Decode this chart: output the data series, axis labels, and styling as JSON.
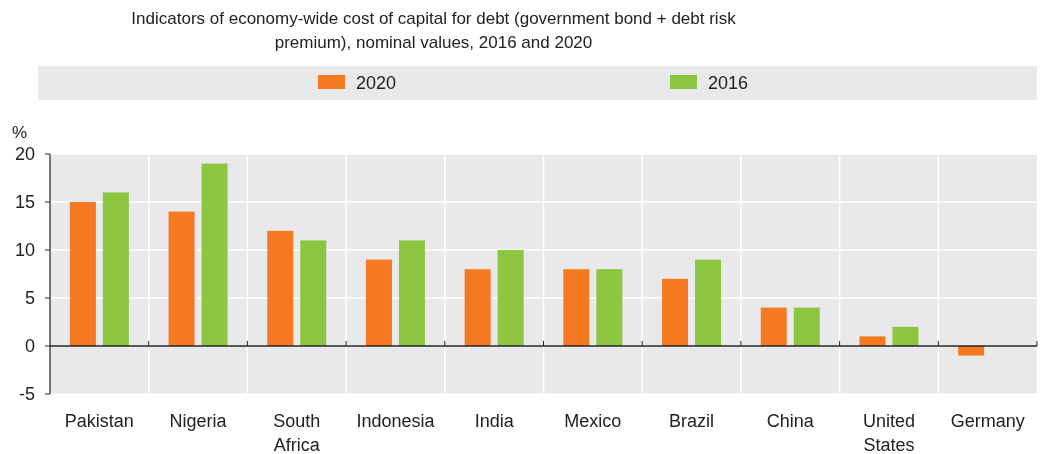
{
  "chart_data": {
    "type": "bar",
    "title": "Indicators of economy-wide cost of capital for debt (government bond + debt risk premium), nominal values, 2016 and 2020",
    "ylabel": "%",
    "categories": [
      "Pakistan",
      "Nigeria",
      "South Africa",
      "Indonesia",
      "India",
      "Mexico",
      "Brazil",
      "China",
      "United States",
      "Germany"
    ],
    "series": [
      {
        "name": "2020",
        "color": "#f47920",
        "values": [
          15,
          14,
          12,
          9,
          8,
          8,
          7,
          4,
          1,
          -1
        ]
      },
      {
        "name": "2016",
        "color": "#8cc641",
        "values": [
          16,
          19,
          11,
          11,
          10,
          8,
          9,
          4,
          2,
          null
        ]
      }
    ],
    "ylim": [
      -5,
      20
    ],
    "yticks": [
      -5,
      0,
      5,
      10,
      15,
      20
    ],
    "grid": true,
    "legend": "top"
  }
}
